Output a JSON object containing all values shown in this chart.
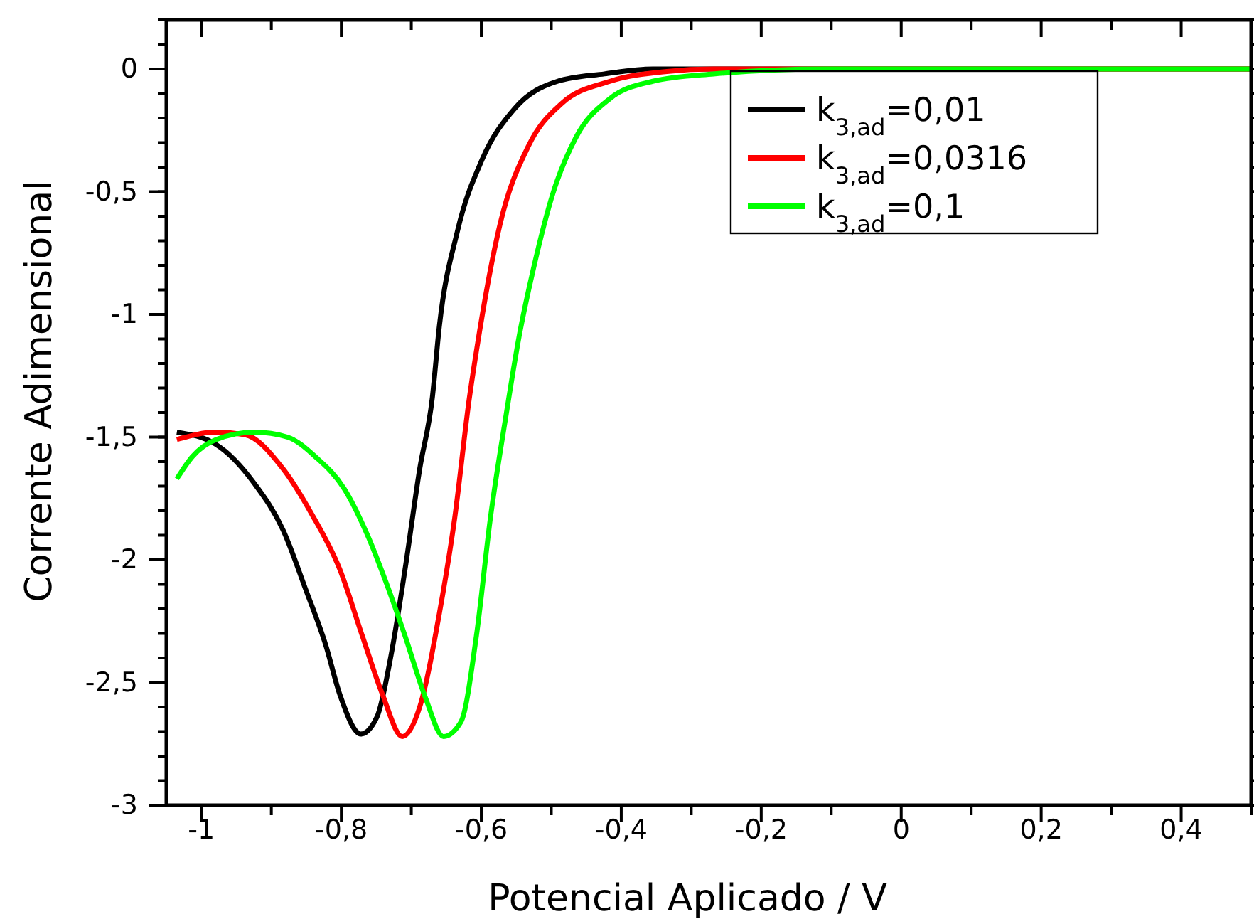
{
  "chart_data": {
    "type": "line",
    "xlabel": "Potencial Aplicado / V",
    "ylabel": "Corrente Adimensional",
    "xlim": [
      -1.05,
      0.5
    ],
    "ylim": [
      -3,
      0.2
    ],
    "xticks": [
      {
        "value": -1,
        "label": "-1"
      },
      {
        "value": -0.9,
        "label": null
      },
      {
        "value": -0.8,
        "label": "-0,8"
      },
      {
        "value": -0.7,
        "label": null
      },
      {
        "value": -0.6,
        "label": "-0,6"
      },
      {
        "value": -0.5,
        "label": null
      },
      {
        "value": -0.4,
        "label": "-0,4"
      },
      {
        "value": -0.3,
        "label": null
      },
      {
        "value": -0.2,
        "label": "-0,2"
      },
      {
        "value": -0.1,
        "label": null
      },
      {
        "value": 0,
        "label": "0"
      },
      {
        "value": 0.1,
        "label": null
      },
      {
        "value": 0.2,
        "label": "0,2"
      },
      {
        "value": 0.3,
        "label": null
      },
      {
        "value": 0.4,
        "label": "0,4"
      },
      {
        "value": 0.5,
        "label": null
      }
    ],
    "yticks": [
      {
        "value": -3,
        "label": "-3"
      },
      {
        "value": -2.5,
        "label": "-2,5"
      },
      {
        "value": -2,
        "label": "-2"
      },
      {
        "value": -1.5,
        "label": "-1,5"
      },
      {
        "value": -1,
        "label": "-1"
      },
      {
        "value": -0.5,
        "label": "-0,5"
      },
      {
        "value": 0,
        "label": "0"
      }
    ],
    "grid": false,
    "legend": "top right",
    "line_style": "solid",
    "marker": "none",
    "series": [
      {
        "name": "k$_{3,ad}$=0,01",
        "color": "#000000",
        "x": [
          -1.035,
          -0.979,
          -0.924,
          -0.883,
          -0.851,
          -0.822,
          -0.802,
          -0.772,
          -0.749,
          -0.729,
          -0.709,
          -0.688,
          -0.67,
          -0.66,
          -0.634,
          -0.599,
          -0.552,
          -0.491,
          -0.424,
          -0.355,
          0,
          0.5
        ],
        "values": [
          -1.48,
          -1.53,
          -1.69,
          -1.88,
          -2.12,
          -2.35,
          -2.55,
          -2.71,
          -2.64,
          -2.39,
          -2.04,
          -1.63,
          -1.34,
          -1.05,
          -0.66,
          -0.37,
          -0.16,
          -0.05,
          -0.02,
          0,
          0,
          0
        ]
      },
      {
        "name": "k$_{3,ad}$=0,0316",
        "color": "#ff0000",
        "x": [
          -1.035,
          -0.979,
          -0.938,
          -0.883,
          -0.843,
          -0.802,
          -0.77,
          -0.741,
          -0.713,
          -0.688,
          -0.66,
          -0.638,
          -0.617,
          -0.607,
          -0.573,
          -0.532,
          -0.485,
          -0.416,
          -0.335,
          -0.268,
          0,
          0.5
        ],
        "values": [
          -1.51,
          -1.48,
          -1.49,
          -1.63,
          -1.81,
          -2.04,
          -2.31,
          -2.55,
          -2.72,
          -2.6,
          -2.22,
          -1.83,
          -1.34,
          -1.15,
          -0.63,
          -0.31,
          -0.14,
          -0.05,
          -0.01,
          0,
          0,
          0
        ]
      },
      {
        "name": "k$_{3,ad}$=0,1",
        "color": "#00ff00",
        "x": [
          -1.035,
          -1.013,
          -0.979,
          -0.924,
          -0.877,
          -0.837,
          -0.796,
          -0.761,
          -0.735,
          -0.709,
          -0.68,
          -0.654,
          -0.629,
          -0.607,
          -0.587,
          -0.564,
          -0.546,
          -0.526,
          -0.498,
          -0.465,
          -0.416,
          -0.355,
          -0.268,
          -0.106,
          0.5
        ],
        "values": [
          -1.67,
          -1.58,
          -1.51,
          -1.48,
          -1.5,
          -1.58,
          -1.71,
          -1.91,
          -2.1,
          -2.31,
          -2.56,
          -2.72,
          -2.66,
          -2.31,
          -1.83,
          -1.4,
          -1.09,
          -0.82,
          -0.51,
          -0.28,
          -0.12,
          -0.05,
          -0.02,
          0,
          0
        ]
      }
    ]
  }
}
